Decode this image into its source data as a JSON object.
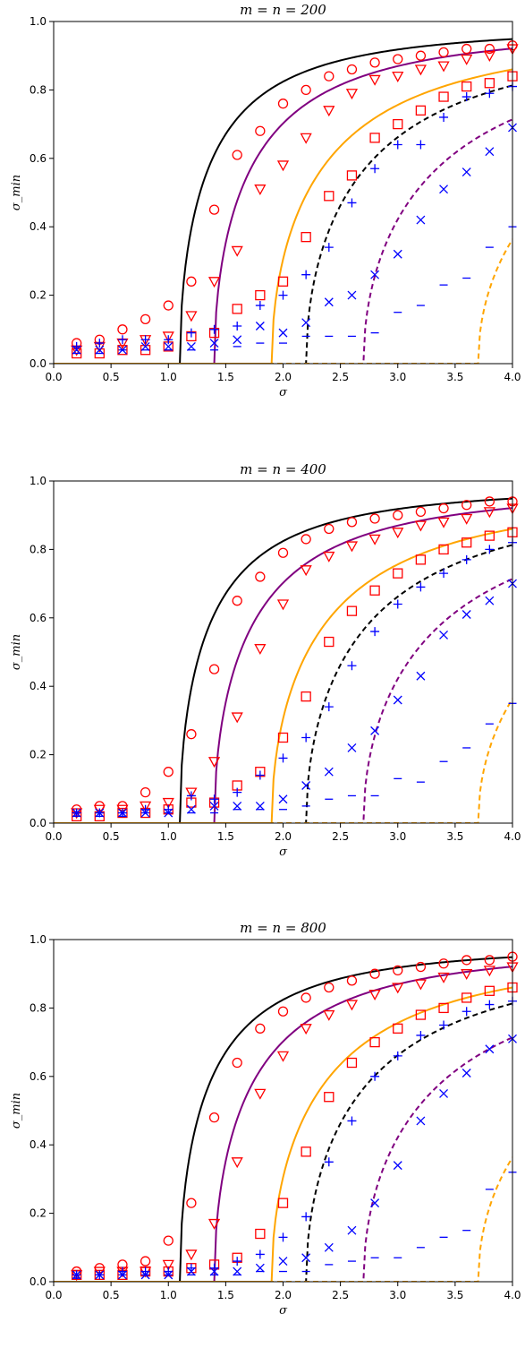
{
  "chart_data": [
    {
      "type": "scatter",
      "title": "m = n = 200",
      "xlabel": "σ",
      "ylabel": "σ_min",
      "xlim": [
        0.0,
        4.0
      ],
      "ylim": [
        0.0,
        1.0
      ],
      "xticks": [
        "0.0",
        "0.5",
        "1.0",
        "1.5",
        "2.0",
        "2.5",
        "3.0",
        "3.5",
        "4.0"
      ],
      "yticks": [
        "0.0",
        "0.2",
        "0.4",
        "0.6",
        "0.8",
        "1.0"
      ],
      "grid": false,
      "curves": [
        {
          "color": "#000000",
          "dash": false,
          "start": 1.1
        },
        {
          "color": "#800080",
          "dash": false,
          "start": 1.4
        },
        {
          "color": "#FFA500",
          "dash": false,
          "start": 1.9
        },
        {
          "color": "#000000",
          "dash": true,
          "start": 2.2
        },
        {
          "color": "#800080",
          "dash": true,
          "start": 2.7
        },
        {
          "color": "#FFA500",
          "dash": true,
          "start": 3.7
        }
      ],
      "markers": [
        {
          "marker": "circle",
          "color": "#FF0000",
          "x": [
            0.2,
            0.4,
            0.6,
            0.8,
            1.0,
            1.2,
            1.4,
            1.6,
            1.8,
            2.0,
            2.2,
            2.4,
            2.6,
            2.8,
            3.0,
            3.2,
            3.4,
            3.6,
            3.8,
            4.0
          ],
          "y": [
            0.06,
            0.07,
            0.1,
            0.13,
            0.17,
            0.24,
            0.45,
            0.61,
            0.68,
            0.76,
            0.8,
            0.84,
            0.86,
            0.88,
            0.89,
            0.9,
            0.91,
            0.92,
            0.92,
            0.93
          ]
        },
        {
          "marker": "triangle-down",
          "color": "#FF0000",
          "x": [
            0.2,
            0.4,
            0.6,
            0.8,
            1.0,
            1.2,
            1.4,
            1.6,
            1.8,
            2.0,
            2.2,
            2.4,
            2.6,
            2.8,
            3.0,
            3.2,
            3.4,
            3.6,
            3.8,
            4.0
          ],
          "y": [
            0.04,
            0.05,
            0.06,
            0.07,
            0.08,
            0.14,
            0.24,
            0.33,
            0.51,
            0.58,
            0.66,
            0.74,
            0.79,
            0.83,
            0.84,
            0.86,
            0.87,
            0.89,
            0.9,
            0.92
          ]
        },
        {
          "marker": "square",
          "color": "#FF0000",
          "x": [
            0.2,
            0.4,
            0.6,
            0.8,
            1.0,
            1.2,
            1.4,
            1.6,
            1.8,
            2.0,
            2.2,
            2.4,
            2.6,
            2.8,
            3.0,
            3.2,
            3.4,
            3.6,
            3.8,
            4.0
          ],
          "y": [
            0.03,
            0.03,
            0.04,
            0.04,
            0.05,
            0.08,
            0.09,
            0.16,
            0.2,
            0.24,
            0.37,
            0.49,
            0.55,
            0.66,
            0.7,
            0.74,
            0.78,
            0.81,
            0.82,
            0.84
          ]
        },
        {
          "marker": "plus",
          "color": "#0000FF",
          "x": [
            0.2,
            0.4,
            0.6,
            0.8,
            1.0,
            1.2,
            1.4,
            1.6,
            1.8,
            2.0,
            2.2,
            2.4,
            2.6,
            2.8,
            3.0,
            3.2,
            3.4,
            3.6,
            3.8,
            4.0
          ],
          "y": [
            0.05,
            0.06,
            0.07,
            0.07,
            0.07,
            0.09,
            0.1,
            0.11,
            0.17,
            0.2,
            0.26,
            0.34,
            0.47,
            0.57,
            0.64,
            0.64,
            0.72,
            0.78,
            0.79,
            0.81
          ]
        },
        {
          "marker": "x",
          "color": "#0000FF",
          "x": [
            0.2,
            0.4,
            0.6,
            0.8,
            1.0,
            1.2,
            1.4,
            1.6,
            1.8,
            2.0,
            2.2,
            2.4,
            2.6,
            2.8,
            3.0,
            3.2,
            3.4,
            3.6,
            3.8,
            4.0
          ],
          "y": [
            0.04,
            0.04,
            0.04,
            0.05,
            0.05,
            0.05,
            0.06,
            0.07,
            0.11,
            0.09,
            0.12,
            0.18,
            0.2,
            0.26,
            0.32,
            0.42,
            0.51,
            0.56,
            0.62,
            0.69
          ]
        },
        {
          "marker": "minus",
          "color": "#0000FF",
          "x": [
            0.2,
            0.4,
            0.6,
            0.8,
            1.0,
            1.2,
            1.4,
            1.6,
            1.8,
            2.0,
            2.2,
            2.4,
            2.6,
            2.8,
            3.0,
            3.2,
            3.4,
            3.6,
            3.8,
            4.0
          ],
          "y": [
            0.03,
            0.03,
            0.04,
            0.04,
            0.04,
            0.04,
            0.04,
            0.05,
            0.06,
            0.06,
            0.08,
            0.08,
            0.08,
            0.09,
            0.15,
            0.17,
            0.23,
            0.25,
            0.34,
            0.4
          ]
        }
      ]
    },
    {
      "type": "scatter",
      "title": "m = n = 400",
      "xlabel": "σ",
      "ylabel": "σ_min",
      "xlim": [
        0.0,
        4.0
      ],
      "ylim": [
        0.0,
        1.0
      ],
      "xticks": [
        "0.0",
        "0.5",
        "1.0",
        "1.5",
        "2.0",
        "2.5",
        "3.0",
        "3.5",
        "4.0"
      ],
      "yticks": [
        "0.0",
        "0.2",
        "0.4",
        "0.6",
        "0.8",
        "1.0"
      ],
      "grid": false,
      "curves": [
        {
          "color": "#000000",
          "dash": false,
          "start": 1.1
        },
        {
          "color": "#800080",
          "dash": false,
          "start": 1.4
        },
        {
          "color": "#FFA500",
          "dash": false,
          "start": 1.9
        },
        {
          "color": "#000000",
          "dash": true,
          "start": 2.2
        },
        {
          "color": "#800080",
          "dash": true,
          "start": 2.7
        },
        {
          "color": "#FFA500",
          "dash": true,
          "start": 3.7
        }
      ],
      "markers": [
        {
          "marker": "circle",
          "color": "#FF0000",
          "x": [
            0.2,
            0.4,
            0.6,
            0.8,
            1.0,
            1.2,
            1.4,
            1.6,
            1.8,
            2.0,
            2.2,
            2.4,
            2.6,
            2.8,
            3.0,
            3.2,
            3.4,
            3.6,
            3.8,
            4.0
          ],
          "y": [
            0.04,
            0.05,
            0.05,
            0.09,
            0.15,
            0.26,
            0.45,
            0.65,
            0.72,
            0.79,
            0.83,
            0.86,
            0.88,
            0.89,
            0.9,
            0.91,
            0.92,
            0.93,
            0.94,
            0.94
          ]
        },
        {
          "marker": "triangle-down",
          "color": "#FF0000",
          "x": [
            0.2,
            0.4,
            0.6,
            0.8,
            1.0,
            1.2,
            1.4,
            1.6,
            1.8,
            2.0,
            2.2,
            2.4,
            2.6,
            2.8,
            3.0,
            3.2,
            3.4,
            3.6,
            3.8,
            4.0
          ],
          "y": [
            0.03,
            0.04,
            0.04,
            0.05,
            0.06,
            0.09,
            0.18,
            0.31,
            0.51,
            0.64,
            0.74,
            0.78,
            0.81,
            0.83,
            0.85,
            0.87,
            0.88,
            0.89,
            0.91,
            0.92
          ]
        },
        {
          "marker": "square",
          "color": "#FF0000",
          "x": [
            0.2,
            0.4,
            0.6,
            0.8,
            1.0,
            1.2,
            1.4,
            1.6,
            1.8,
            2.0,
            2.2,
            2.4,
            2.6,
            2.8,
            3.0,
            3.2,
            3.4,
            3.6,
            3.8,
            4.0
          ],
          "y": [
            0.02,
            0.02,
            0.03,
            0.03,
            0.04,
            0.06,
            0.06,
            0.11,
            0.15,
            0.25,
            0.37,
            0.53,
            0.62,
            0.68,
            0.73,
            0.77,
            0.8,
            0.82,
            0.84,
            0.85
          ]
        },
        {
          "marker": "plus",
          "color": "#0000FF",
          "x": [
            0.2,
            0.4,
            0.6,
            0.8,
            1.0,
            1.2,
            1.4,
            1.6,
            1.8,
            2.0,
            2.2,
            2.4,
            2.6,
            2.8,
            3.0,
            3.2,
            3.4,
            3.6,
            3.8,
            4.0
          ],
          "y": [
            0.03,
            0.03,
            0.03,
            0.04,
            0.04,
            0.08,
            0.07,
            0.09,
            0.14,
            0.19,
            0.25,
            0.34,
            0.46,
            0.56,
            0.64,
            0.69,
            0.73,
            0.77,
            0.8,
            0.82
          ]
        },
        {
          "marker": "x",
          "color": "#0000FF",
          "x": [
            0.2,
            0.4,
            0.6,
            0.8,
            1.0,
            1.2,
            1.4,
            1.6,
            1.8,
            2.0,
            2.2,
            2.4,
            2.6,
            2.8,
            3.0,
            3.2,
            3.4,
            3.6,
            3.8,
            4.0
          ],
          "y": [
            0.03,
            0.03,
            0.03,
            0.03,
            0.03,
            0.04,
            0.05,
            0.05,
            0.05,
            0.07,
            0.11,
            0.15,
            0.22,
            0.27,
            0.36,
            0.43,
            0.55,
            0.61,
            0.65,
            0.7
          ]
        },
        {
          "marker": "minus",
          "color": "#0000FF",
          "x": [
            0.2,
            0.4,
            0.6,
            0.8,
            1.0,
            1.2,
            1.4,
            1.6,
            1.8,
            2.0,
            2.2,
            2.4,
            2.6,
            2.8,
            3.0,
            3.2,
            3.4,
            3.6,
            3.8,
            4.0
          ],
          "y": [
            0.02,
            0.02,
            0.02,
            0.03,
            0.03,
            0.03,
            0.03,
            0.04,
            0.04,
            0.04,
            0.05,
            0.07,
            0.08,
            0.08,
            0.13,
            0.12,
            0.18,
            0.22,
            0.29,
            0.35
          ]
        }
      ]
    },
    {
      "type": "scatter",
      "title": "m = n = 800",
      "xlabel": "σ",
      "ylabel": "σ_min",
      "xlim": [
        0.0,
        4.0
      ],
      "ylim": [
        0.0,
        1.0
      ],
      "xticks": [
        "0.0",
        "0.5",
        "1.0",
        "1.5",
        "2.0",
        "2.5",
        "3.0",
        "3.5",
        "4.0"
      ],
      "yticks": [
        "0.0",
        "0.2",
        "0.4",
        "0.6",
        "0.8",
        "1.0"
      ],
      "grid": false,
      "curves": [
        {
          "color": "#000000",
          "dash": false,
          "start": 1.1
        },
        {
          "color": "#800080",
          "dash": false,
          "start": 1.4
        },
        {
          "color": "#FFA500",
          "dash": false,
          "start": 1.9
        },
        {
          "color": "#000000",
          "dash": true,
          "start": 2.2
        },
        {
          "color": "#800080",
          "dash": true,
          "start": 2.7
        },
        {
          "color": "#FFA500",
          "dash": true,
          "start": 3.7
        }
      ],
      "markers": [
        {
          "marker": "circle",
          "color": "#FF0000",
          "x": [
            0.2,
            0.4,
            0.6,
            0.8,
            1.0,
            1.2,
            1.4,
            1.6,
            1.8,
            2.0,
            2.2,
            2.4,
            2.6,
            2.8,
            3.0,
            3.2,
            3.4,
            3.6,
            3.8,
            4.0
          ],
          "y": [
            0.03,
            0.04,
            0.05,
            0.06,
            0.12,
            0.23,
            0.48,
            0.64,
            0.74,
            0.79,
            0.83,
            0.86,
            0.88,
            0.9,
            0.91,
            0.92,
            0.93,
            0.94,
            0.94,
            0.95
          ]
        },
        {
          "marker": "triangle-down",
          "color": "#FF0000",
          "x": [
            0.2,
            0.4,
            0.6,
            0.8,
            1.0,
            1.2,
            1.4,
            1.6,
            1.8,
            2.0,
            2.2,
            2.4,
            2.6,
            2.8,
            3.0,
            3.2,
            3.4,
            3.6,
            3.8,
            4.0
          ],
          "y": [
            0.02,
            0.03,
            0.03,
            0.03,
            0.05,
            0.08,
            0.17,
            0.35,
            0.55,
            0.66,
            0.74,
            0.78,
            0.81,
            0.84,
            0.86,
            0.87,
            0.89,
            0.9,
            0.91,
            0.92
          ]
        },
        {
          "marker": "square",
          "color": "#FF0000",
          "x": [
            0.2,
            0.4,
            0.6,
            0.8,
            1.0,
            1.2,
            1.4,
            1.6,
            1.8,
            2.0,
            2.2,
            2.4,
            2.6,
            2.8,
            3.0,
            3.2,
            3.4,
            3.6,
            3.8,
            4.0
          ],
          "y": [
            0.02,
            0.02,
            0.02,
            0.03,
            0.03,
            0.04,
            0.05,
            0.07,
            0.14,
            0.23,
            0.38,
            0.54,
            0.64,
            0.7,
            0.74,
            0.78,
            0.8,
            0.83,
            0.85,
            0.86
          ]
        },
        {
          "marker": "plus",
          "color": "#0000FF",
          "x": [
            0.2,
            0.4,
            0.6,
            0.8,
            1.0,
            1.2,
            1.4,
            1.6,
            1.8,
            2.0,
            2.2,
            2.4,
            2.6,
            2.8,
            3.0,
            3.2,
            3.4,
            3.6,
            3.8,
            4.0
          ],
          "y": [
            0.02,
            0.02,
            0.03,
            0.03,
            0.03,
            0.04,
            0.04,
            0.06,
            0.08,
            0.13,
            0.19,
            0.35,
            0.47,
            0.6,
            0.66,
            0.72,
            0.75,
            0.79,
            0.81,
            0.82
          ]
        },
        {
          "marker": "x",
          "color": "#0000FF",
          "x": [
            0.2,
            0.4,
            0.6,
            0.8,
            1.0,
            1.2,
            1.4,
            1.6,
            1.8,
            2.0,
            2.2,
            2.4,
            2.6,
            2.8,
            3.0,
            3.2,
            3.4,
            3.6,
            3.8,
            4.0
          ],
          "y": [
            0.02,
            0.02,
            0.02,
            0.02,
            0.02,
            0.03,
            0.03,
            0.03,
            0.04,
            0.06,
            0.07,
            0.1,
            0.15,
            0.23,
            0.34,
            0.47,
            0.55,
            0.61,
            0.68,
            0.71
          ]
        },
        {
          "marker": "minus",
          "color": "#0000FF",
          "x": [
            0.2,
            0.4,
            0.6,
            0.8,
            1.0,
            1.2,
            1.4,
            1.6,
            1.8,
            2.0,
            2.2,
            2.4,
            2.6,
            2.8,
            3.0,
            3.2,
            3.4,
            3.6,
            3.8,
            4.0
          ],
          "y": [
            0.01,
            0.02,
            0.02,
            0.02,
            0.02,
            0.02,
            0.02,
            0.02,
            0.03,
            0.03,
            0.03,
            0.05,
            0.06,
            0.07,
            0.07,
            0.1,
            0.13,
            0.15,
            0.27,
            0.32
          ]
        }
      ]
    }
  ]
}
